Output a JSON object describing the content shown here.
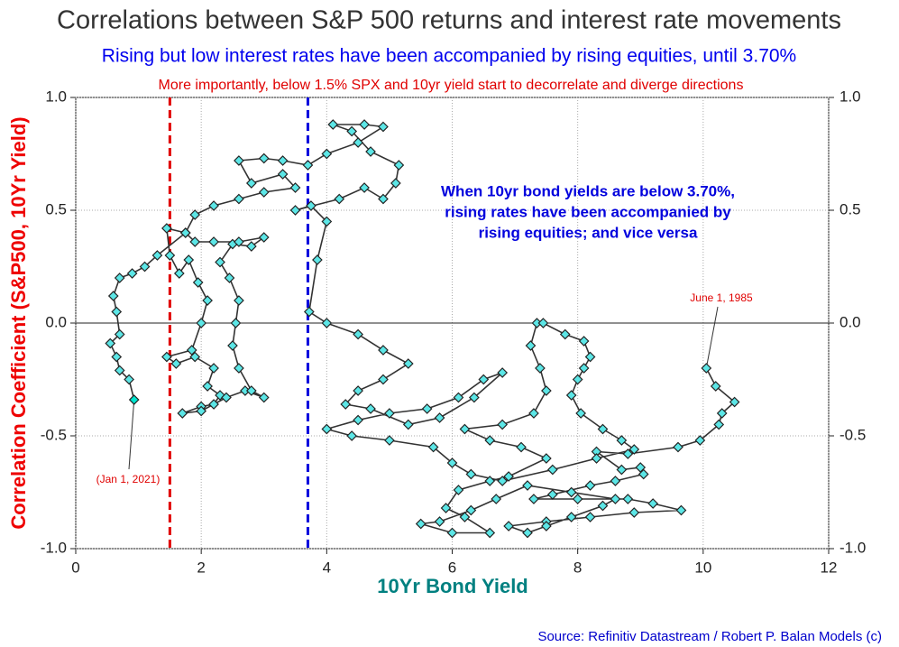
{
  "chart_data": {
    "type": "line",
    "title": "Correlations between S&P 500 returns and interest rate movements",
    "subtitle": "Rising but low interest rates have been accompanied by rising equities, until 3.70%",
    "subtitle2": "More importantly, below 1.5% SPX and 10yr yield start to decorrelate and diverge directions",
    "x_label": "10Yr Bond Yield",
    "y_label": "Correlation Coefficient (S&P500, 10Yr Yield)",
    "source": "Source: Refinitiv Datastream / Robert P. Balan Models (c)",
    "annotation_lines": [
      "When 10yr bond yields are below 3.70%,",
      "rising rates have been accompanied by",
      "rising equities; and vice versa"
    ],
    "start_label": "June 1, 1985",
    "end_label": "(Jan 1, 2021)",
    "xlim": [
      0,
      12
    ],
    "xticks": [
      0,
      2,
      4,
      6,
      8,
      10,
      12
    ],
    "ylim": [
      -1.0,
      1.0
    ],
    "yticks": [
      {
        "value": -1.0,
        "label": "-1.0"
      },
      {
        "value": -0.5,
        "label": "-0.5"
      },
      {
        "value": 0.0,
        "label": "0.0"
      },
      {
        "value": 0.5,
        "label": "0.5"
      },
      {
        "value": 1.0,
        "label": "1.0"
      }
    ],
    "grid": true,
    "vlines": [
      {
        "value": 1.5,
        "color": "#e00000"
      },
      {
        "value": 3.7,
        "color": "#0000dd"
      }
    ],
    "hline": 0,
    "series": [
      {
        "color": "#5ce6e6",
        "line_color": "#333333",
        "highlight_color": "#00e5d0",
        "x": [
          10.05,
          10.2,
          10.5,
          10.3,
          10.25,
          9.95,
          9.6,
          8.8,
          8.3,
          8.7,
          9.0,
          9.05,
          8.6,
          8.2,
          7.6,
          7.3,
          8.0,
          8.8,
          9.2,
          9.65,
          8.9,
          8.2,
          7.5,
          6.9,
          7.2,
          7.5,
          7.9,
          8.4,
          8.6,
          7.9,
          7.2,
          6.7,
          6.3,
          5.8,
          5.5,
          6.0,
          6.6,
          6.2,
          5.9,
          6.1,
          6.6,
          6.9,
          7.5,
          7.1,
          6.6,
          6.2,
          6.8,
          7.3,
          7.5,
          7.4,
          7.25,
          7.35,
          7.45,
          7.8,
          8.1,
          8.2,
          8.1,
          8.0,
          7.9,
          8.05,
          8.4,
          8.7,
          8.9,
          8.3,
          7.6,
          6.8,
          6.3,
          6.0,
          5.7,
          5.0,
          4.4,
          4.0,
          4.5,
          5.0,
          5.6,
          6.1,
          6.5,
          6.8,
          6.35,
          5.8,
          5.3,
          4.7,
          4.3,
          4.5,
          4.9,
          5.3,
          4.9,
          4.5,
          4.0,
          3.72,
          3.85,
          4.0,
          3.75,
          3.5,
          4.2,
          4.6,
          4.9,
          5.1,
          5.15,
          4.7,
          4.4,
          4.1,
          4.6,
          4.9,
          4.5,
          4.0,
          3.7,
          3.3,
          3.0,
          2.6,
          2.8,
          3.3,
          3.5,
          3.0,
          2.6,
          2.2,
          1.9,
          1.75,
          1.45,
          1.5,
          1.65,
          1.8,
          1.95,
          2.1,
          2.0,
          1.85,
          1.45,
          1.6,
          1.9,
          2.2,
          2.1,
          2.3,
          2.2,
          2.0,
          1.7,
          2.0,
          2.4,
          2.7,
          3.0,
          2.8,
          2.6,
          2.5,
          2.55,
          2.6,
          2.45,
          2.3,
          2.5,
          2.8,
          3.0,
          2.6,
          2.2,
          1.9,
          1.75,
          1.3,
          1.1,
          0.9,
          0.7,
          0.6,
          0.65,
          0.7,
          0.55,
          0.65,
          0.7,
          0.85,
          0.93
        ],
        "values": [
          -0.2,
          -0.28,
          -0.35,
          -0.4,
          -0.45,
          -0.52,
          -0.55,
          -0.58,
          -0.57,
          -0.65,
          -0.64,
          -0.67,
          -0.7,
          -0.72,
          -0.76,
          -0.78,
          -0.78,
          -0.78,
          -0.8,
          -0.83,
          -0.84,
          -0.86,
          -0.88,
          -0.9,
          -0.93,
          -0.9,
          -0.86,
          -0.81,
          -0.78,
          -0.75,
          -0.72,
          -0.78,
          -0.83,
          -0.88,
          -0.89,
          -0.93,
          -0.93,
          -0.86,
          -0.82,
          -0.74,
          -0.7,
          -0.68,
          -0.6,
          -0.55,
          -0.52,
          -0.47,
          -0.45,
          -0.4,
          -0.3,
          -0.2,
          -0.1,
          0.0,
          0.0,
          -0.05,
          -0.08,
          -0.15,
          -0.2,
          -0.25,
          -0.32,
          -0.4,
          -0.47,
          -0.52,
          -0.56,
          -0.6,
          -0.65,
          -0.7,
          -0.67,
          -0.62,
          -0.55,
          -0.52,
          -0.5,
          -0.47,
          -0.43,
          -0.4,
          -0.38,
          -0.33,
          -0.25,
          -0.22,
          -0.33,
          -0.42,
          -0.45,
          -0.38,
          -0.36,
          -0.3,
          -0.25,
          -0.18,
          -0.12,
          -0.05,
          0.0,
          0.05,
          0.28,
          0.45,
          0.52,
          0.5,
          0.55,
          0.6,
          0.55,
          0.62,
          0.7,
          0.76,
          0.85,
          0.88,
          0.88,
          0.87,
          0.8,
          0.75,
          0.7,
          0.72,
          0.73,
          0.72,
          0.62,
          0.66,
          0.6,
          0.58,
          0.55,
          0.52,
          0.48,
          0.4,
          0.42,
          0.3,
          0.22,
          0.28,
          0.18,
          0.1,
          0.0,
          -0.12,
          -0.15,
          -0.18,
          -0.15,
          -0.2,
          -0.28,
          -0.32,
          -0.36,
          -0.37,
          -0.4,
          -0.39,
          -0.33,
          -0.3,
          -0.33,
          -0.3,
          -0.2,
          -0.1,
          0.0,
          0.1,
          0.2,
          0.27,
          0.35,
          0.34,
          0.38,
          0.36,
          0.36,
          0.36,
          0.4,
          0.3,
          0.25,
          0.22,
          0.2,
          0.12,
          0.05,
          -0.05,
          -0.09,
          -0.15,
          -0.21,
          -0.25,
          -0.34
        ]
      }
    ]
  }
}
